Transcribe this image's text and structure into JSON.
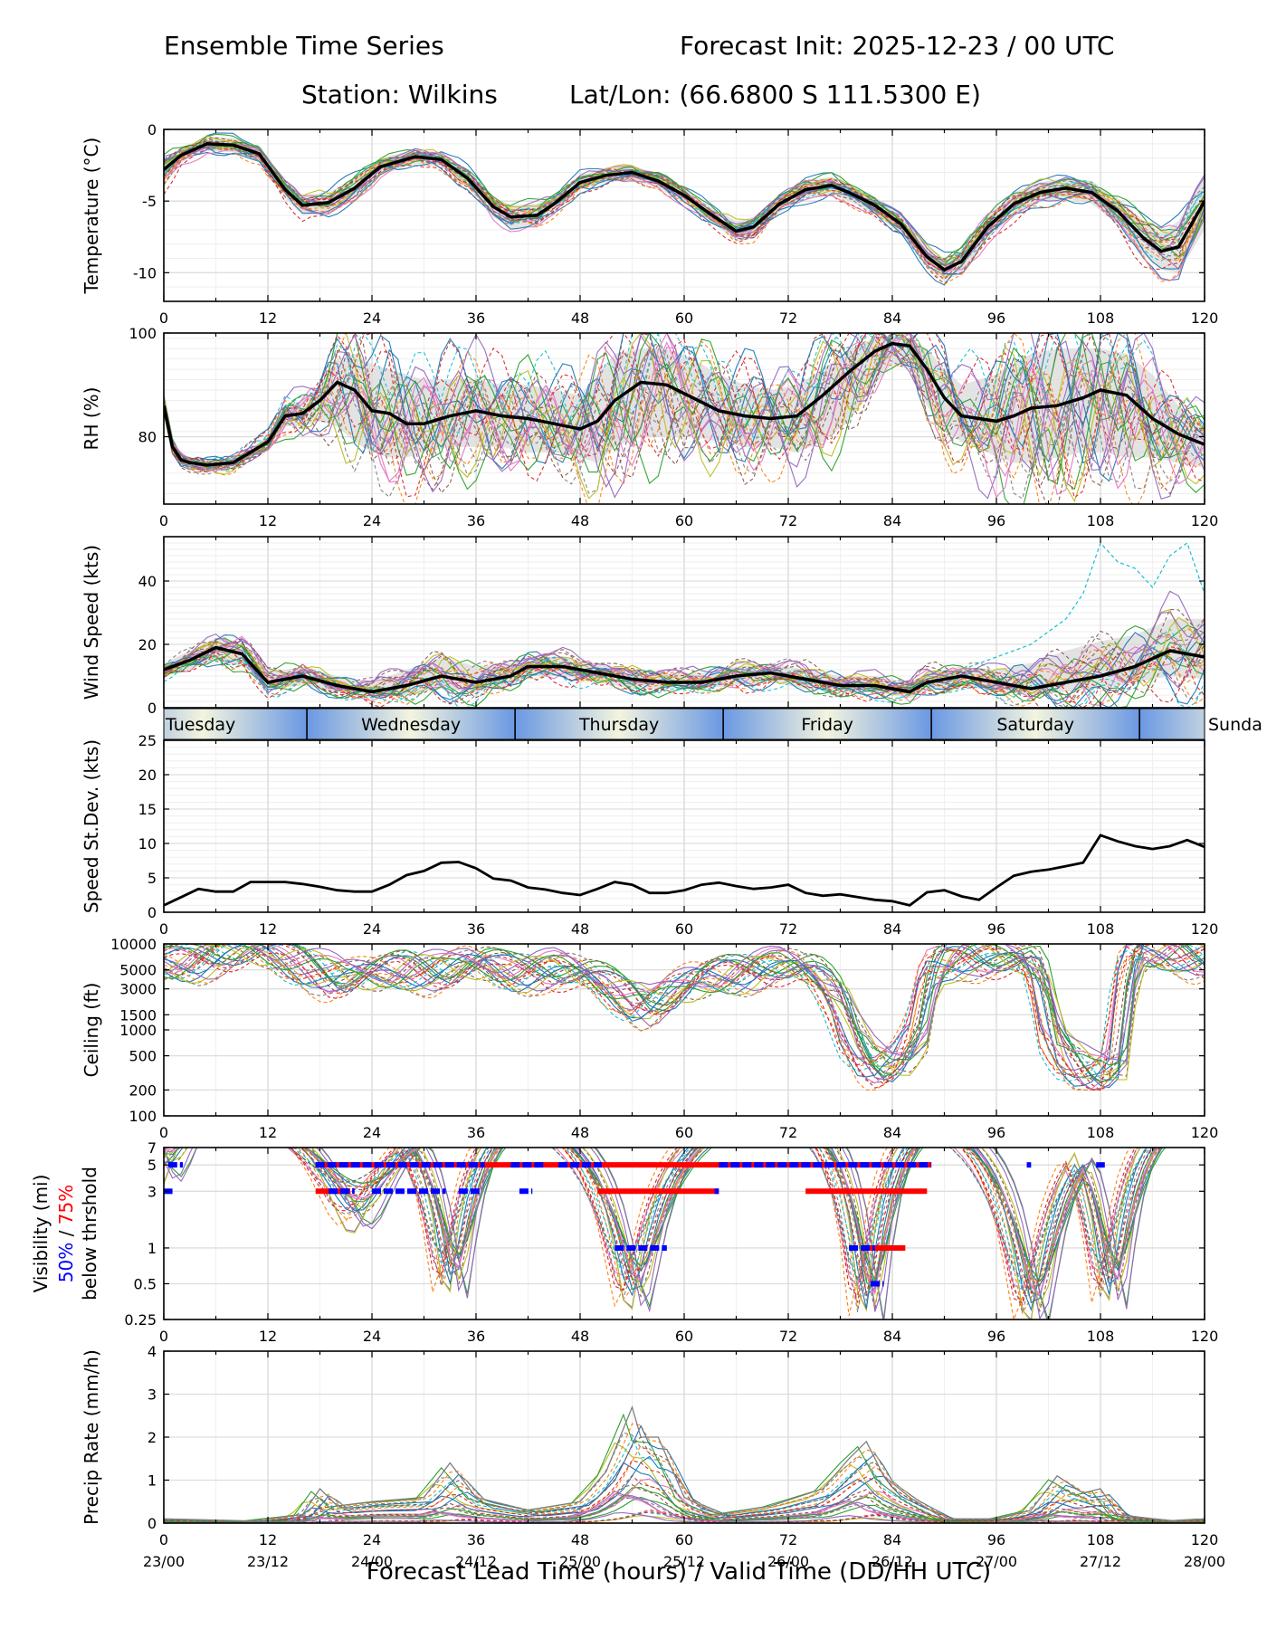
{
  "header": {
    "title_left": "Ensemble Time Series",
    "title_right": "Forecast Init: 2025-12-23 / 00 UTC",
    "station": "Station: Wilkins",
    "latlon": "Lat/Lon: (66.6800 S 111.5300 E)"
  },
  "x_axis": {
    "label": "Forecast Lead Time (hours) / Valid Time (DD/HH UTC)",
    "range": [
      0,
      120
    ],
    "ticks": [
      "0",
      "12",
      "24",
      "36",
      "48",
      "60",
      "72",
      "84",
      "96",
      "108",
      "120"
    ],
    "valid_times": [
      "23/00",
      "23/12",
      "24/00",
      "24/12",
      "25/00",
      "25/12",
      "26/00",
      "26/12",
      "27/00",
      "27/12",
      "28/00"
    ]
  },
  "day_band": {
    "days": [
      "Tuesday",
      "Wednesday",
      "Thursday",
      "Friday",
      "Saturday",
      "Sunda"
    ],
    "boundaries_hours": [
      16.5,
      40.5,
      64.5,
      88.5,
      112.5
    ]
  },
  "colors": {
    "mean": "#000000",
    "spread": "#d9d9d9",
    "vis50": "#0000ff",
    "vis75": "#ff0000",
    "members": [
      "#1f77b4",
      "#ff7f0e",
      "#2ca02c",
      "#d62728",
      "#9467bd",
      "#8c564b",
      "#e377c2",
      "#7f7f7f",
      "#bcbd22",
      "#17becf"
    ]
  },
  "chart_data": [
    {
      "id": "temperature",
      "type": "line",
      "ylabel": "Temperature (°C)",
      "ylim": [
        -12,
        0
      ],
      "yticks": [
        0,
        -5,
        -10
      ],
      "ytick_labels": [
        "0",
        "-5",
        "-10"
      ],
      "x": [
        0,
        2,
        5,
        8,
        11,
        14,
        16,
        19,
        22,
        25,
        29,
        32,
        35,
        38,
        40,
        43,
        45,
        48,
        51,
        54,
        57,
        60,
        63,
        66,
        68,
        71,
        74,
        77,
        79,
        82,
        85,
        88,
        90,
        92,
        95,
        98,
        101,
        104,
        107,
        110,
        113,
        115,
        117,
        120
      ],
      "mean": [
        -2.8,
        -1.8,
        -1.0,
        -1.1,
        -1.7,
        -4.2,
        -5.3,
        -5.1,
        -4.1,
        -2.6,
        -1.9,
        -2.1,
        -3.4,
        -5.4,
        -6.1,
        -6.0,
        -5.2,
        -3.7,
        -3.2,
        -3.0,
        -3.6,
        -4.6,
        -5.9,
        -7.1,
        -6.8,
        -5.2,
        -4.2,
        -3.9,
        -4.4,
        -5.3,
        -6.6,
        -8.9,
        -9.8,
        -9.2,
        -6.8,
        -5.2,
        -4.4,
        -4.1,
        -4.4,
        -5.7,
        -7.6,
        -8.5,
        -8.2,
        -5.0
      ],
      "spread_low": [
        -4.0,
        -2.3,
        -1.5,
        -1.6,
        -2.2,
        -4.8,
        -6.0,
        -5.8,
        -4.8,
        -3.2,
        -2.4,
        -2.6,
        -4.0,
        -6.1,
        -6.9,
        -6.8,
        -5.8,
        -4.2,
        -3.7,
        -3.5,
        -4.1,
        -5.1,
        -6.4,
        -7.8,
        -7.5,
        -5.8,
        -4.8,
        -4.5,
        -5.0,
        -5.9,
        -7.3,
        -9.6,
        -10.6,
        -10.0,
        -7.6,
        -6.0,
        -5.1,
        -4.8,
        -5.2,
        -6.6,
        -8.8,
        -9.8,
        -10.0,
        -7.0
      ],
      "spread_high": [
        -2.0,
        -1.3,
        -0.5,
        -0.6,
        -1.2,
        -3.6,
        -4.6,
        -4.4,
        -3.4,
        -2.0,
        -1.4,
        -1.6,
        -2.8,
        -4.7,
        -5.3,
        -5.2,
        -4.6,
        -3.2,
        -2.7,
        -2.5,
        -3.1,
        -4.1,
        -5.4,
        -6.4,
        -6.1,
        -4.6,
        -3.6,
        -3.3,
        -3.8,
        -4.7,
        -5.9,
        -8.2,
        -9.0,
        -8.4,
        -6.0,
        -4.4,
        -3.7,
        -3.4,
        -3.6,
        -4.8,
        -6.4,
        -7.2,
        -6.4,
        -3.4
      ]
    },
    {
      "id": "rh",
      "type": "line",
      "ylabel": "RH (%)",
      "ylim": [
        67,
        100
      ],
      "yticks": [
        100,
        80
      ],
      "ytick_labels": [
        "100",
        "80"
      ],
      "x": [
        0,
        1,
        2,
        3,
        5,
        8,
        10,
        12,
        14,
        16,
        18,
        20,
        22,
        24,
        26,
        28,
        30,
        33,
        36,
        39,
        42,
        45,
        48,
        50,
        52,
        55,
        58,
        61,
        64,
        67,
        70,
        73,
        76,
        79,
        82,
        84,
        86,
        88,
        90,
        92,
        94,
        96,
        98,
        100,
        103,
        106,
        108,
        111,
        114,
        117,
        120
      ],
      "mean": [
        86,
        78,
        75.5,
        75,
        74.5,
        75,
        77,
        79,
        84,
        84.5,
        87,
        90.5,
        89,
        85,
        84.5,
        82.5,
        82.5,
        84,
        85,
        84,
        83.5,
        82.5,
        81.5,
        83,
        87,
        90.5,
        90,
        87.5,
        85,
        84,
        83.5,
        84,
        88,
        92.5,
        96.5,
        98,
        97.5,
        93,
        87.5,
        84,
        83.5,
        83,
        84,
        85.5,
        86,
        87.5,
        89,
        88,
        83.5,
        80.5,
        78.5
      ],
      "spread_low": [
        85,
        77,
        74.5,
        74,
        73.5,
        74,
        76,
        78,
        82,
        82,
        83,
        82,
        79,
        77,
        76,
        76,
        77,
        78,
        78,
        78,
        77,
        77,
        76,
        75,
        78,
        80,
        80,
        80,
        79,
        78,
        78,
        77,
        79,
        83,
        90,
        94,
        93,
        86,
        81,
        79,
        78,
        76,
        75,
        75,
        76,
        77,
        77,
        76,
        76,
        75,
        74
      ],
      "spread_high": [
        87,
        79,
        76.5,
        76,
        75.5,
        76,
        78,
        80,
        86,
        87,
        90,
        95,
        96,
        94,
        93,
        92,
        91,
        91,
        91,
        90,
        90,
        89,
        88,
        92,
        96,
        97,
        97,
        95,
        92,
        90,
        89,
        90,
        93,
        97,
        99,
        99.5,
        99,
        97,
        93,
        90,
        91,
        92,
        94,
        96,
        97,
        97,
        97,
        96,
        92,
        86,
        82
      ]
    },
    {
      "id": "wind_speed",
      "type": "line",
      "ylabel": "Wind Speed (kts)",
      "ylim": [
        0,
        54
      ],
      "yticks": [
        0,
        20,
        40
      ],
      "ytick_labels": [
        "0",
        "20",
        "40"
      ],
      "x": [
        0,
        3,
        6,
        9,
        12,
        16,
        20,
        24,
        28,
        32,
        36,
        40,
        42,
        46,
        50,
        54,
        58,
        62,
        66,
        70,
        74,
        78,
        82,
        86,
        88,
        92,
        96,
        100,
        104,
        108,
        112,
        116,
        120
      ],
      "mean": [
        12,
        15,
        19,
        17,
        8,
        10,
        7,
        5,
        7,
        10,
        8,
        10,
        13,
        13,
        11,
        9,
        8,
        8,
        10,
        11,
        9,
        7,
        7,
        5,
        8,
        10,
        8,
        6,
        8,
        10,
        13,
        18,
        16
      ],
      "spread_low": [
        10,
        12,
        15,
        13,
        6,
        7,
        5,
        3,
        4,
        6,
        5,
        7,
        10,
        10,
        8,
        6,
        6,
        6,
        7,
        8,
        6,
        5,
        5,
        3,
        5,
        7,
        5,
        4,
        5,
        6,
        8,
        10,
        9
      ],
      "spread_high": [
        14,
        18,
        22,
        20,
        11,
        13,
        10,
        8,
        12,
        16,
        13,
        14,
        16,
        16,
        14,
        12,
        11,
        11,
        13,
        14,
        12,
        10,
        10,
        8,
        11,
        13,
        12,
        14,
        18,
        21,
        23,
        28,
        28
      ],
      "outlier_member_x": [
        86,
        96,
        100,
        104,
        106,
        108,
        110,
        112,
        114,
        116,
        118,
        120
      ],
      "outlier_member_y": [
        6,
        16,
        20,
        28,
        36,
        52,
        46,
        44,
        38,
        48,
        52,
        36
      ]
    },
    {
      "id": "speed_stdev",
      "type": "line",
      "ylabel": "Speed St.Dev. (kts)",
      "ylim": [
        0,
        25
      ],
      "yticks": [
        0,
        5,
        10,
        15,
        20,
        25
      ],
      "ytick_labels": [
        "0",
        "5",
        "10",
        "15",
        "20",
        "25"
      ],
      "x": [
        0,
        2,
        4,
        6,
        8,
        10,
        12,
        14,
        16,
        18,
        20,
        22,
        24,
        26,
        28,
        30,
        32,
        34,
        36,
        38,
        40,
        42,
        44,
        46,
        48,
        50,
        52,
        54,
        56,
        58,
        60,
        62,
        64,
        66,
        68,
        70,
        72,
        74,
        76,
        78,
        80,
        82,
        84,
        86,
        88,
        90,
        92,
        94,
        96,
        98,
        100,
        102,
        104,
        106,
        108,
        110,
        112,
        114,
        116,
        118,
        120
      ],
      "values": [
        1.0,
        2.2,
        3.4,
        3.0,
        3.0,
        4.4,
        4.4,
        4.4,
        4.1,
        3.7,
        3.2,
        3.0,
        3.0,
        4.0,
        5.4,
        6.0,
        7.2,
        7.3,
        6.4,
        4.9,
        4.6,
        3.6,
        3.3,
        2.8,
        2.5,
        3.4,
        4.4,
        4.0,
        2.8,
        2.8,
        3.2,
        4.0,
        4.3,
        3.8,
        3.4,
        3.6,
        4.0,
        2.8,
        2.4,
        2.6,
        2.2,
        1.8,
        1.6,
        1.0,
        2.9,
        3.2,
        2.3,
        1.8,
        3.6,
        5.3,
        5.9,
        6.2,
        6.7,
        7.2,
        11.2,
        10.3,
        9.6,
        9.2,
        9.6,
        10.5,
        9.5
      ]
    },
    {
      "id": "ceiling",
      "type": "line",
      "ylabel": "Ceiling (ft)",
      "yscale": "log",
      "ylim": [
        100,
        10000
      ],
      "yticks": [
        10000,
        5000,
        3000,
        1500,
        1000,
        500,
        200,
        100
      ],
      "ytick_labels": [
        "10000",
        "5000",
        "3000",
        "1500",
        "1000",
        "500",
        "200",
        "100"
      ],
      "x": [
        0,
        4,
        8,
        12,
        16,
        20,
        24,
        28,
        32,
        36,
        40,
        44,
        48,
        52,
        55,
        58,
        62,
        66,
        70,
        74,
        77,
        79,
        81,
        83,
        85,
        87,
        89,
        92,
        96,
        100,
        102,
        104,
        106,
        108,
        110,
        112,
        116,
        120
      ],
      "representative_member": [
        6000,
        7000,
        8500,
        8000,
        6000,
        4000,
        4500,
        5500,
        5000,
        6000,
        5000,
        5500,
        4500,
        3000,
        2000,
        2500,
        4000,
        5000,
        6000,
        5000,
        2800,
        900,
        450,
        350,
        450,
        900,
        6000,
        8000,
        7000,
        6000,
        900,
        500,
        350,
        300,
        400,
        8000,
        9000,
        7000
      ]
    },
    {
      "id": "visibility",
      "type": "scatter",
      "ylabel": "Visibility (mi)",
      "ylabel_50": "50%",
      "ylabel_sep": " / ",
      "ylabel_75": "75%",
      "ylabel_sub": "below thrshold",
      "yscale": "log",
      "ylim": [
        0.25,
        7
      ],
      "yticks": [
        7,
        5,
        3,
        1,
        0.5,
        0.25
      ],
      "ytick_labels": [
        "7",
        "5",
        "3",
        "1",
        "0.5",
        "0.25"
      ],
      "thresholds": [
        5,
        3,
        1,
        0.5
      ],
      "below_75pct_segments": [
        {
          "level": 5,
          "start": 17.5,
          "end": 88.5
        },
        {
          "level": 3,
          "start": 17.5,
          "end": 21.5
        },
        {
          "level": 3,
          "start": 50.0,
          "end": 64.0
        },
        {
          "level": 3,
          "start": 74.0,
          "end": 88.0
        },
        {
          "level": 1,
          "start": 80.5,
          "end": 85.5
        }
      ],
      "below_50pct_segments": [
        {
          "level": 5,
          "start": 0.5,
          "end": 2.2
        },
        {
          "level": 5,
          "start": 17.5,
          "end": 37.0
        },
        {
          "level": 5,
          "start": 40.0,
          "end": 44.0
        },
        {
          "level": 5,
          "start": 45.5,
          "end": 50.5
        },
        {
          "level": 5,
          "start": 64.0,
          "end": 88.5
        },
        {
          "level": 5,
          "start": 99.5,
          "end": 100.0
        },
        {
          "level": 5,
          "start": 107.5,
          "end": 108.5
        },
        {
          "level": 3,
          "start": 0.0,
          "end": 1.0
        },
        {
          "level": 3,
          "start": 19.0,
          "end": 22.0
        },
        {
          "level": 3,
          "start": 24.0,
          "end": 32.5
        },
        {
          "level": 3,
          "start": 34.0,
          "end": 36.5
        },
        {
          "level": 3,
          "start": 41.0,
          "end": 42.5
        },
        {
          "level": 3,
          "start": 63.5,
          "end": 64.0
        },
        {
          "level": 1,
          "start": 52.0,
          "end": 58.0
        },
        {
          "level": 1,
          "start": 79.0,
          "end": 82.0
        },
        {
          "level": 0.5,
          "start": 81.5,
          "end": 83.0
        }
      ]
    },
    {
      "id": "precip",
      "type": "line",
      "ylabel": "Precip Rate (mm/h)",
      "ylim": [
        0,
        4
      ],
      "yticks": [
        0,
        1,
        2,
        3,
        4
      ],
      "ytick_labels": [
        "0",
        "1",
        "2",
        "3",
        "4"
      ],
      "x": [
        0,
        10,
        16,
        18,
        20,
        24,
        30,
        33,
        36,
        42,
        48,
        51,
        53,
        54,
        55,
        57,
        60,
        64,
        70,
        76,
        79,
        81,
        83,
        86,
        90,
        96,
        100,
        103,
        106,
        108,
        110,
        116,
        120
      ],
      "max_member": [
        0.1,
        0.05,
        0.2,
        0.8,
        0.4,
        0.5,
        0.6,
        1.4,
        0.6,
        0.3,
        0.5,
        1.2,
        2.2,
        2.7,
        2.0,
        2.0,
        0.6,
        0.2,
        0.4,
        0.8,
        1.5,
        1.9,
        1.1,
        0.6,
        0.1,
        0.1,
        0.3,
        1.1,
        0.7,
        0.8,
        0.2,
        0.05,
        0.1
      ],
      "typical_member": [
        0.05,
        0.02,
        0.05,
        0.3,
        0.2,
        0.3,
        0.2,
        0.4,
        0.3,
        0.1,
        0.2,
        0.6,
        1.2,
        1.7,
        1.6,
        1.2,
        0.3,
        0.1,
        0.2,
        0.3,
        0.9,
        1.2,
        0.6,
        0.3,
        0.05,
        0.02,
        0.1,
        0.3,
        0.2,
        0.3,
        0.05,
        0.02,
        0.02
      ]
    }
  ]
}
